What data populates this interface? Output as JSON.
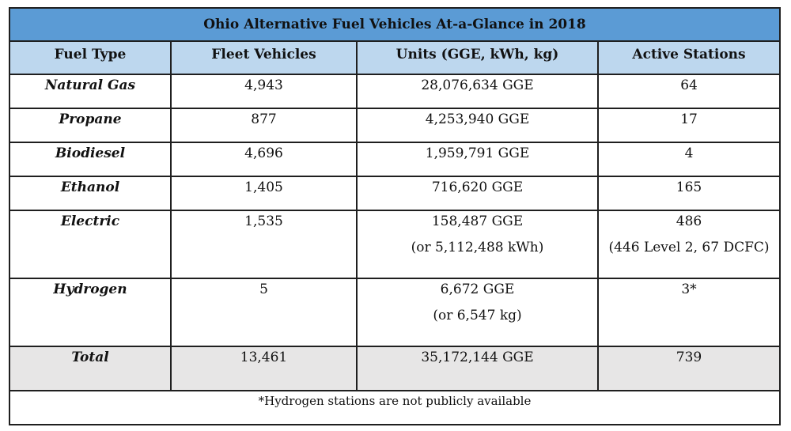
{
  "title": "Ohio Alternative Fuel Vehicles At-a-Glance in 2018",
  "headers": [
    "Fuel Type",
    "Fleet Vehicles",
    "Units (GGE, kWh, kg)",
    "Active Stations"
  ],
  "rows": [
    {
      "fuel": "Natural Gas",
      "fleet": "4,943",
      "units": "28,076,634 GGE",
      "units2": "",
      "stations": "64",
      "stations2": ""
    },
    {
      "fuel": "Propane",
      "fleet": "877",
      "units": "4,253,940 GGE",
      "units2": "",
      "stations": "17",
      "stations2": ""
    },
    {
      "fuel": "Biodiesel",
      "fleet": "4,696",
      "units": "1,959,791 GGE",
      "units2": "",
      "stations": "4",
      "stations2": ""
    },
    {
      "fuel": "Ethanol",
      "fleet": "1,405",
      "units": "716,620 GGE",
      "units2": "",
      "stations": "165",
      "stations2": ""
    },
    {
      "fuel": "Electric",
      "fleet": "1,535",
      "units": "158,487 GGE",
      "units2": "(or 5,112,488 kWh)",
      "stations": "486",
      "stations2": "(446 Level 2, 67 DCFC)"
    },
    {
      "fuel": "Hydrogen",
      "fleet": "5",
      "units": "6,672 GGE",
      "units2": "(or 6,547 kg)",
      "stations": "3*",
      "stations2": ""
    }
  ],
  "total": {
    "fuel": "Total",
    "fleet": "13,461",
    "units": "35,172,144 GGE",
    "stations": "739"
  },
  "footnote": "*Hydrogen stations are not publicly available"
}
